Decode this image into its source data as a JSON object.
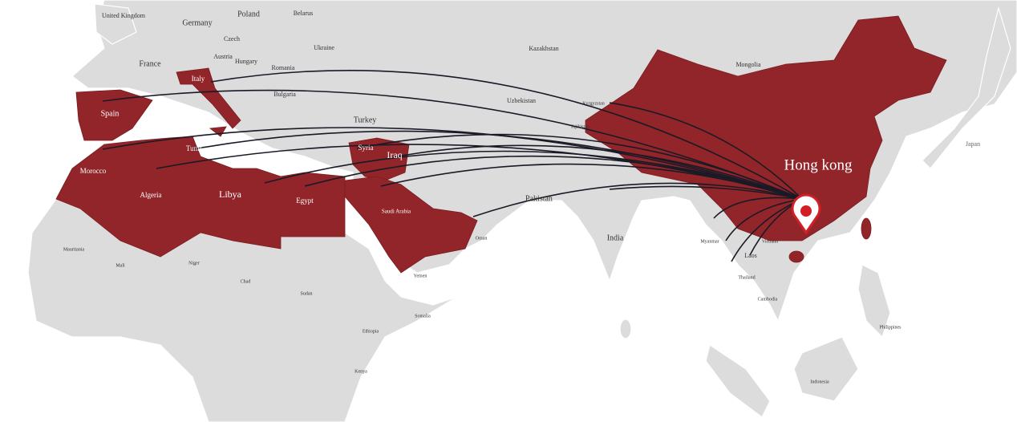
{
  "map": {
    "highlight_city": "Hong kong",
    "countries": [
      "United Kingdom",
      "Germany",
      "Poland",
      "Belarus",
      "France",
      "Czech",
      "Austria",
      "Hungary",
      "Ukraine",
      "Romania",
      "Italy",
      "Spain",
      "Bulgaria",
      "Turkey",
      "Tunis",
      "Morocco",
      "Algeria",
      "Libya",
      "Egypt",
      "Syria",
      "Iraq",
      "Saudi Arabia",
      "Kazakhstan",
      "Mongolia",
      "Uzbekistan",
      "Kyrgyzstan",
      "Tajikistan",
      "Pakistan",
      "India",
      "Laos",
      "Thailand",
      "Cambodia",
      "Japan",
      "Mauritania",
      "Mali",
      "Niger",
      "Chad",
      "Sudan",
      "Ethiopia",
      "Somalia",
      "Kenya",
      "Oman",
      "Yemen",
      "Indonesia",
      "Philippines",
      "Myanmar",
      "Vietnam"
    ]
  }
}
